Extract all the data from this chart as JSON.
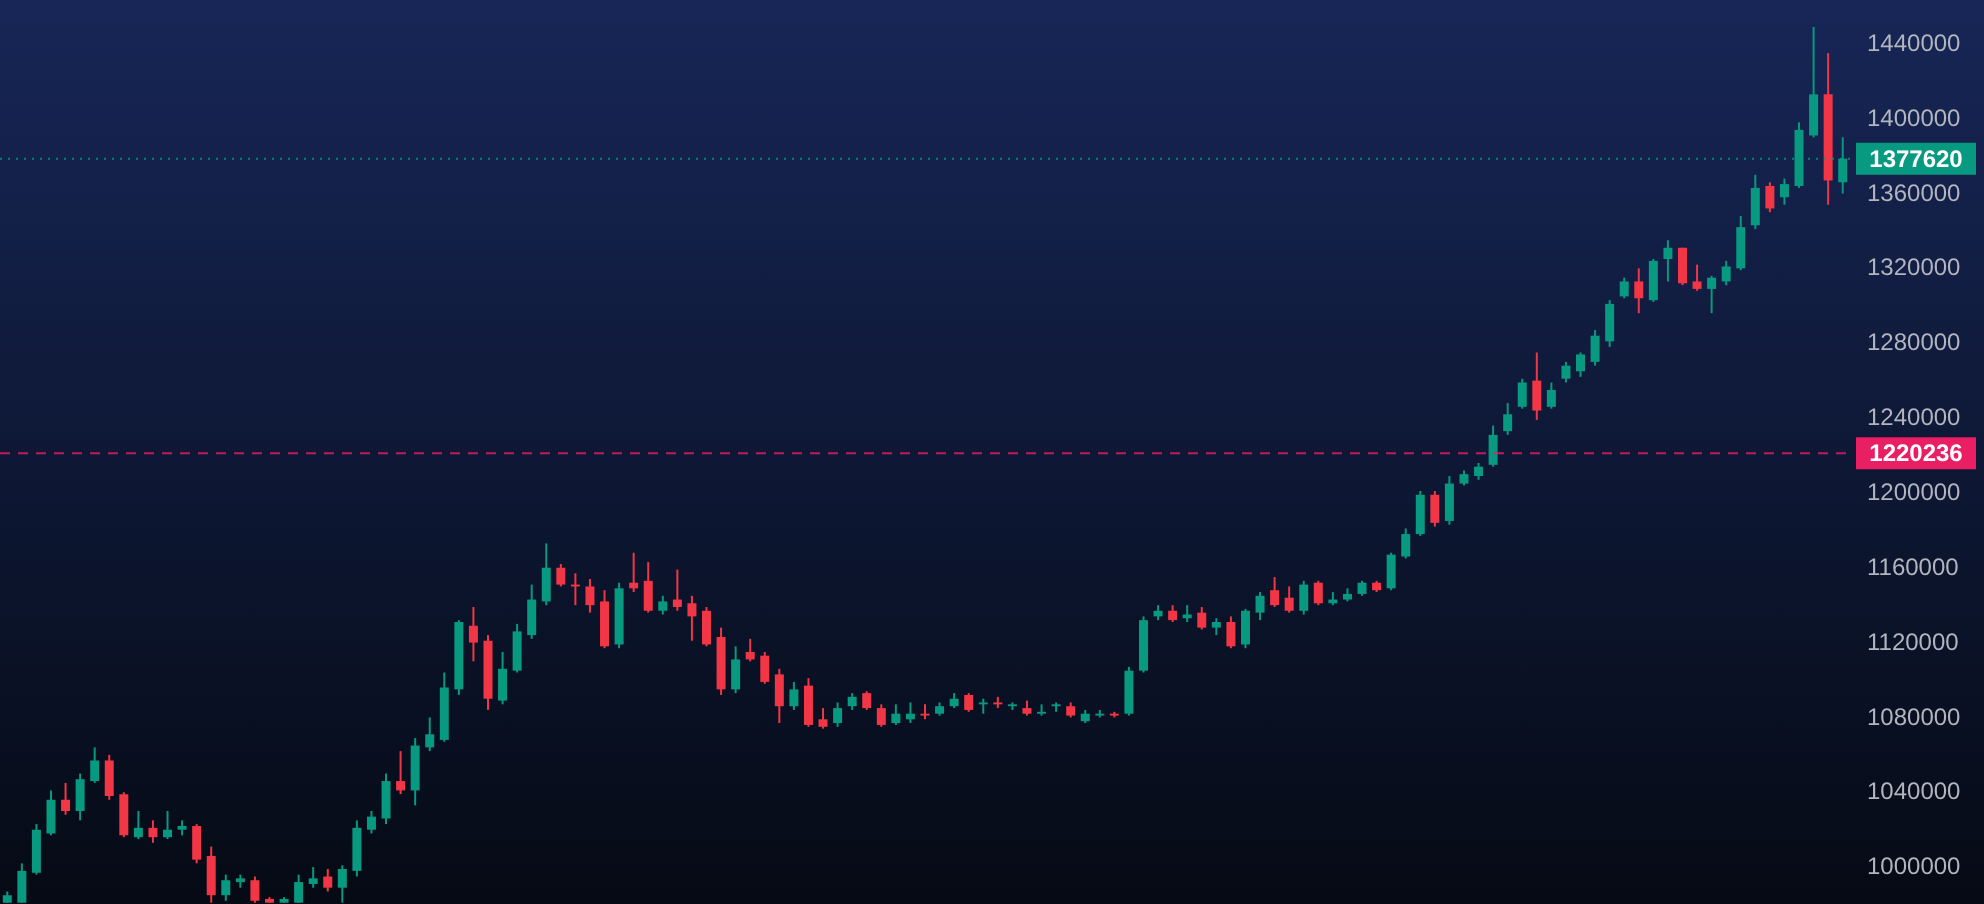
{
  "chart_data": {
    "type": "candlestick",
    "categories": [
      null,
      null,
      null,
      null,
      null,
      null,
      null,
      null,
      null,
      null,
      null,
      null,
      null,
      null,
      null,
      null,
      null,
      null,
      null,
      null,
      null,
      null,
      null,
      null,
      null,
      null,
      null,
      null,
      null,
      null,
      null,
      null,
      null,
      null,
      null,
      null,
      null,
      null,
      null,
      null,
      null,
      null,
      null,
      null,
      null,
      null,
      null,
      null,
      null,
      null,
      null,
      null,
      null,
      null,
      null,
      null,
      null,
      null,
      null,
      null,
      null,
      null,
      null,
      null,
      null,
      null,
      null,
      null,
      null,
      null,
      null,
      null,
      null,
      null,
      null,
      null,
      null,
      null,
      null,
      null,
      null,
      null,
      null,
      null,
      null,
      null,
      null,
      null,
      null,
      null,
      null,
      null,
      null,
      null,
      null,
      null,
      null,
      null,
      null,
      null,
      null,
      null,
      null,
      null,
      null,
      null,
      null,
      null,
      null,
      null,
      null,
      null,
      null,
      null,
      null,
      null,
      null,
      null,
      null,
      null,
      null,
      null,
      null,
      null,
      null,
      null,
      null
    ],
    "ohlc": [
      [
        980000,
        986000,
        980000,
        984000
      ],
      [
        980000,
        1001000,
        980000,
        997000
      ],
      [
        996000,
        1022000,
        995000,
        1019000
      ],
      [
        1017000,
        1040000,
        1016000,
        1035000
      ],
      [
        1035000,
        1044000,
        1027000,
        1029000
      ],
      [
        1029000,
        1049000,
        1024000,
        1046000
      ],
      [
        1045000,
        1063000,
        1044000,
        1056000
      ],
      [
        1056000,
        1059000,
        1035000,
        1037000
      ],
      [
        1038000,
        1039000,
        1015000,
        1016000
      ],
      [
        1015000,
        1029000,
        1014000,
        1020000
      ],
      [
        1020000,
        1024000,
        1012000,
        1015000
      ],
      [
        1015000,
        1029000,
        1014000,
        1019000
      ],
      [
        1019000,
        1024000,
        1016000,
        1021000
      ],
      [
        1021000,
        1022000,
        1001000,
        1003000
      ],
      [
        1005000,
        1010000,
        980000,
        984000
      ],
      [
        984000,
        995000,
        981000,
        992000
      ],
      [
        991000,
        995000,
        988000,
        993000
      ],
      [
        992000,
        994000,
        980000,
        981000
      ],
      [
        982000,
        983000,
        980000,
        980000
      ],
      [
        980000,
        983000,
        980000,
        982000
      ],
      [
        980000,
        995000,
        980000,
        991000
      ],
      [
        990000,
        999000,
        988000,
        993000
      ],
      [
        994000,
        998000,
        986000,
        988000
      ],
      [
        988000,
        1000000,
        980000,
        998000
      ],
      [
        997000,
        1024000,
        994000,
        1020000
      ],
      [
        1019000,
        1029000,
        1017000,
        1026000
      ],
      [
        1025000,
        1049000,
        1022000,
        1045000
      ],
      [
        1045000,
        1061000,
        1038000,
        1040000
      ],
      [
        1040000,
        1068000,
        1032000,
        1064000
      ],
      [
        1063000,
        1079000,
        1061000,
        1070000
      ],
      [
        1067000,
        1103000,
        1066000,
        1095000
      ],
      [
        1094000,
        1131000,
        1091000,
        1130000
      ],
      [
        1128000,
        1138000,
        1109000,
        1119000
      ],
      [
        1120000,
        1123000,
        1083000,
        1089000
      ],
      [
        1088000,
        1114000,
        1086000,
        1105000
      ],
      [
        1104000,
        1129000,
        1103000,
        1125000
      ],
      [
        1123000,
        1150000,
        1121000,
        1142000
      ],
      [
        1141000,
        1172000,
        1139000,
        1159000
      ],
      [
        1159000,
        1161000,
        1149000,
        1150000
      ],
      [
        1150000,
        1156000,
        1139000,
        1149000
      ],
      [
        1149000,
        1153000,
        1135000,
        1139000
      ],
      [
        1141000,
        1147000,
        1116000,
        1117000
      ],
      [
        1118000,
        1151000,
        1116000,
        1148000
      ],
      [
        1151000,
        1167000,
        1146000,
        1148000
      ],
      [
        1152000,
        1162000,
        1135000,
        1136000
      ],
      [
        1136000,
        1144000,
        1134000,
        1141000
      ],
      [
        1142000,
        1158000,
        1136000,
        1138000
      ],
      [
        1140000,
        1144000,
        1120000,
        1133000
      ],
      [
        1136000,
        1138000,
        1117000,
        1118000
      ],
      [
        1122000,
        1127000,
        1091000,
        1094000
      ],
      [
        1094000,
        1117000,
        1092000,
        1110000
      ],
      [
        1114000,
        1121000,
        1109000,
        1110000
      ],
      [
        1112000,
        1114000,
        1097000,
        1098000
      ],
      [
        1102000,
        1105000,
        1076000,
        1085000
      ],
      [
        1085000,
        1098000,
        1083000,
        1094000
      ],
      [
        1096000,
        1100000,
        1074000,
        1075000
      ],
      [
        1078000,
        1084000,
        1073000,
        1074000
      ],
      [
        1076000,
        1087000,
        1074000,
        1084000
      ],
      [
        1085000,
        1092000,
        1083000,
        1090000
      ],
      [
        1092000,
        1093000,
        1083000,
        1084000
      ],
      [
        1084000,
        1086000,
        1074000,
        1075000
      ],
      [
        1076000,
        1086000,
        1075000,
        1081000
      ],
      [
        1078000,
        1087000,
        1076000,
        1081000
      ],
      [
        1081000,
        1086000,
        1078000,
        1080000
      ],
      [
        1081000,
        1087000,
        1080000,
        1085000
      ],
      [
        1085000,
        1092000,
        1084000,
        1089000
      ],
      [
        1091000,
        1092000,
        1082000,
        1083000
      ],
      [
        1086000,
        1089000,
        1081000,
        1087000
      ],
      [
        1087000,
        1090000,
        1084000,
        1086000
      ],
      [
        1085000,
        1087000,
        1083000,
        1086000
      ],
      [
        1084000,
        1088000,
        1080000,
        1081000
      ],
      [
        1081000,
        1086000,
        1080000,
        1082000
      ],
      [
        1085000,
        1087000,
        1082000,
        1086000
      ],
      [
        1085000,
        1087000,
        1079000,
        1080000
      ],
      [
        1077000,
        1083000,
        1076000,
        1081000
      ],
      [
        1080000,
        1083000,
        1079000,
        1081000
      ],
      [
        1081000,
        1082000,
        1079000,
        1080000
      ],
      [
        1081000,
        1106000,
        1080000,
        1104000
      ],
      [
        1104000,
        1133000,
        1103000,
        1131000
      ],
      [
        1133000,
        1139000,
        1131000,
        1136000
      ],
      [
        1136000,
        1139000,
        1130000,
        1131000
      ],
      [
        1132000,
        1139000,
        1130000,
        1134000
      ],
      [
        1135000,
        1138000,
        1126000,
        1127000
      ],
      [
        1127000,
        1132000,
        1123000,
        1130000
      ],
      [
        1130000,
        1133000,
        1116000,
        1117000
      ],
      [
        1118000,
        1137000,
        1116000,
        1136000
      ],
      [
        1135000,
        1146000,
        1131000,
        1144000
      ],
      [
        1147000,
        1154000,
        1138000,
        1139000
      ],
      [
        1143000,
        1149000,
        1135000,
        1136000
      ],
      [
        1136000,
        1152000,
        1134000,
        1150000
      ],
      [
        1151000,
        1152000,
        1139000,
        1140000
      ],
      [
        1140000,
        1146000,
        1139000,
        1142000
      ],
      [
        1142000,
        1148000,
        1141000,
        1145000
      ],
      [
        1145000,
        1152000,
        1144000,
        1151000
      ],
      [
        1151000,
        1152000,
        1146000,
        1147000
      ],
      [
        1148000,
        1167000,
        1147000,
        1166000
      ],
      [
        1165000,
        1180000,
        1164000,
        1177000
      ],
      [
        1177000,
        1200000,
        1176000,
        1198000
      ],
      [
        1198000,
        1200000,
        1181000,
        1183000
      ],
      [
        1184000,
        1208000,
        1182000,
        1204000
      ],
      [
        1204000,
        1211000,
        1203000,
        1209000
      ],
      [
        1208000,
        1215000,
        1206000,
        1213000
      ],
      [
        1214000,
        1235000,
        1213000,
        1230000
      ],
      [
        1232000,
        1247000,
        1230000,
        1241000
      ],
      [
        1245000,
        1260000,
        1244000,
        1258000
      ],
      [
        1259000,
        1274000,
        1238000,
        1243000
      ],
      [
        1245000,
        1258000,
        1244000,
        1254000
      ],
      [
        1260000,
        1269000,
        1258000,
        1267000
      ],
      [
        1264000,
        1274000,
        1261000,
        1273000
      ],
      [
        1269000,
        1286000,
        1267000,
        1283000
      ],
      [
        1280000,
        1302000,
        1277000,
        1300000
      ],
      [
        1304000,
        1314000,
        1303000,
        1312000
      ],
      [
        1312000,
        1319000,
        1295000,
        1303000
      ],
      [
        1302000,
        1324000,
        1301000,
        1323000
      ],
      [
        1324000,
        1334000,
        1312000,
        1330000
      ],
      [
        1330000,
        1330000,
        1310000,
        1311000
      ],
      [
        1312000,
        1321000,
        1307000,
        1308000
      ],
      [
        1308000,
        1315000,
        1295000,
        1314000
      ],
      [
        1312000,
        1323000,
        1310000,
        1320000
      ],
      [
        1319000,
        1347000,
        1318000,
        1341000
      ],
      [
        1342000,
        1369000,
        1340000,
        1362000
      ],
      [
        1363000,
        1365000,
        1349000,
        1351000
      ],
      [
        1357000,
        1367000,
        1353000,
        1364000
      ],
      [
        1363000,
        1397000,
        1362000,
        1393000
      ],
      [
        1390000,
        1448000,
        1389000,
        1412000
      ],
      [
        1412000,
        1434000,
        1353000,
        1366000
      ],
      [
        1365000,
        1389000,
        1359000,
        1377620
      ]
    ],
    "ylim": [
      979300,
      1462400
    ],
    "yticks": [
      1000000,
      1040000,
      1080000,
      1120000,
      1160000,
      1200000,
      1240000,
      1280000,
      1320000,
      1360000,
      1400000,
      1440000
    ],
    "tick_labels": "y",
    "grid": false,
    "ref_lines": [
      {
        "axis": "y",
        "value": 1377620,
        "label": "1377620",
        "color": "#089981",
        "line_style": "dotted"
      },
      {
        "axis": "y",
        "value": 1220236,
        "label": "1220236",
        "color": "#e91e63",
        "line_style": "dashed"
      }
    ]
  }
}
